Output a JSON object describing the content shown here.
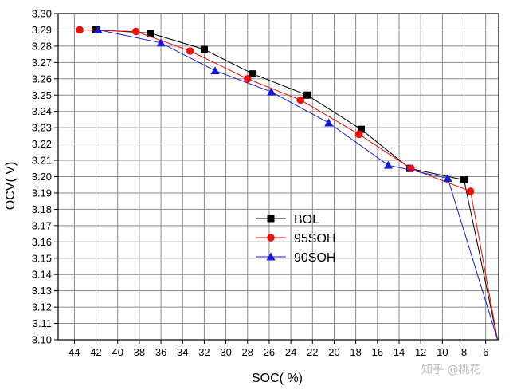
{
  "chart_data": {
    "type": "line",
    "title": "",
    "xlabel": "SOC( %)",
    "ylabel": "OCV( V)",
    "xlim": [
      45.5,
      4.8
    ],
    "ylim": [
      3.1,
      3.3
    ],
    "x_ticks": [
      44,
      42,
      40,
      38,
      36,
      34,
      32,
      30,
      28,
      26,
      24,
      22,
      20,
      18,
      16,
      14,
      12,
      10,
      8,
      6
    ],
    "y_ticks": [
      "3.10",
      "3.11",
      "3.12",
      "3.13",
      "3.14",
      "3.15",
      "3.16",
      "3.17",
      "3.18",
      "3.19",
      "3.20",
      "3.21",
      "3.22",
      "3.23",
      "3.24",
      "3.25",
      "3.26",
      "3.27",
      "3.28",
      "3.29",
      "3.30"
    ],
    "grid": true,
    "legend_position": "center",
    "series": [
      {
        "name": "BOL",
        "color": "#000000",
        "marker": "square",
        "x": [
          42.0,
          37.0,
          32.0,
          27.5,
          22.5,
          17.5,
          13.0,
          8.0,
          4.9
        ],
        "y": [
          3.29,
          3.288,
          3.278,
          3.263,
          3.25,
          3.229,
          3.205,
          3.198,
          3.1
        ]
      },
      {
        "name": "95SOH",
        "color": "#e8120c",
        "marker": "circle",
        "x": [
          43.5,
          38.3,
          33.3,
          28.0,
          23.1,
          17.7,
          12.9,
          7.4,
          4.9
        ],
        "y": [
          3.29,
          3.289,
          3.277,
          3.26,
          3.247,
          3.226,
          3.205,
          3.191,
          3.1
        ]
      },
      {
        "name": "90SOH",
        "color": "#1a1ad6",
        "marker": "triangle",
        "x": [
          41.8,
          36.0,
          31.0,
          25.8,
          20.5,
          15.0,
          9.5,
          4.9
        ],
        "y": [
          3.29,
          3.282,
          3.265,
          3.252,
          3.233,
          3.207,
          3.199,
          3.1
        ]
      }
    ]
  },
  "watermark": "知乎 @桃花"
}
